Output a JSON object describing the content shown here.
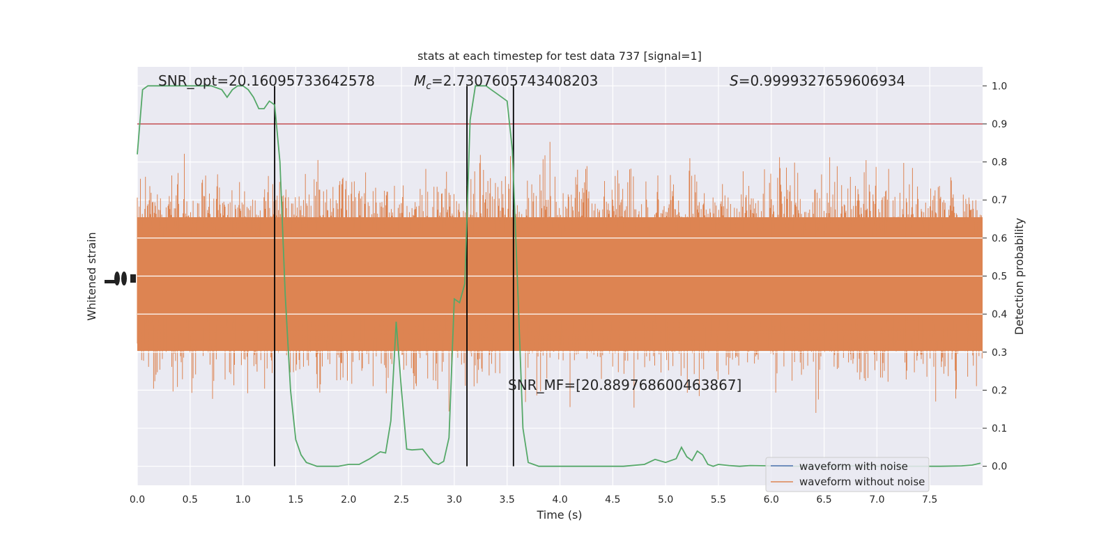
{
  "chart_data": {
    "type": "line",
    "title": "stats at each timestep for test data 737 [signal=1]",
    "xlabel": "Time (s)",
    "ylabel_left": "Whitened strain",
    "ylabel_right": "Detection probability",
    "xlim": [
      0.0,
      8.0
    ],
    "ylim_right": [
      -0.05,
      1.05
    ],
    "x_ticks": [
      "0.0",
      "0.5",
      "1.0",
      "1.5",
      "2.0",
      "2.5",
      "3.0",
      "3.5",
      "4.0",
      "4.5",
      "5.0",
      "5.5",
      "6.0",
      "6.5",
      "7.0",
      "7.5"
    ],
    "right_ticks": [
      "0.0",
      "0.1",
      "0.2",
      "0.3",
      "0.4",
      "0.5",
      "0.6",
      "0.7",
      "0.8",
      "0.9",
      "1.0"
    ],
    "grid": true,
    "legend_position": "bottom-right",
    "annotations": {
      "snr_opt": "SNR_opt=20.16095733642578",
      "mc_symbol": "M",
      "mc_subscript": "c",
      "mc_value": "=2.7307605743408203",
      "s_symbol": "S",
      "s_value": "=0.9999327659606934",
      "snr_mf": "SNR_MF=[20.889768600463867]"
    },
    "threshold": {
      "value": 0.9,
      "color": "#c44e52"
    },
    "vertical_lines_time": [
      1.3,
      3.12,
      3.56
    ],
    "series": [
      {
        "name": "waveform with noise",
        "color": "#4c72b0"
      },
      {
        "name": "waveform without noise",
        "color": "#dd8452"
      },
      {
        "color": "#55a868",
        "x": [
          0.0,
          0.05,
          0.1,
          0.15,
          0.2,
          0.3,
          0.4,
          0.5,
          0.6,
          0.7,
          0.8,
          0.85,
          0.9,
          0.95,
          1.0,
          1.05,
          1.1,
          1.15,
          1.2,
          1.25,
          1.3,
          1.35,
          1.4,
          1.45,
          1.5,
          1.55,
          1.6,
          1.7,
          1.8,
          1.9,
          2.0,
          2.1,
          2.2,
          2.3,
          2.35,
          2.4,
          2.45,
          2.5,
          2.55,
          2.6,
          2.7,
          2.8,
          2.85,
          2.9,
          2.95,
          3.0,
          3.05,
          3.1,
          3.15,
          3.2,
          3.25,
          3.3,
          3.35,
          3.4,
          3.45,
          3.5,
          3.55,
          3.6,
          3.65,
          3.7,
          3.75,
          3.8,
          3.9,
          4.0,
          4.2,
          4.4,
          4.6,
          4.8,
          4.9,
          5.0,
          5.1,
          5.15,
          5.2,
          5.25,
          5.3,
          5.35,
          5.4,
          5.45,
          5.5,
          5.6,
          5.7,
          5.8,
          6.0,
          6.2,
          6.4,
          6.6,
          6.8,
          7.0,
          7.2,
          7.4,
          7.6,
          7.8,
          7.9,
          7.98
        ],
        "values": [
          0.82,
          0.99,
          1.0,
          1.0,
          1.0,
          1.0,
          1.0,
          1.0,
          1.0,
          1.0,
          0.99,
          0.97,
          0.99,
          1.0,
          1.0,
          0.99,
          0.97,
          0.94,
          0.94,
          0.96,
          0.95,
          0.8,
          0.45,
          0.2,
          0.07,
          0.03,
          0.01,
          0.0,
          0.0,
          0.0,
          0.005,
          0.005,
          0.02,
          0.038,
          0.035,
          0.12,
          0.38,
          0.2,
          0.045,
          0.043,
          0.045,
          0.01,
          0.005,
          0.013,
          0.075,
          0.44,
          0.43,
          0.48,
          0.91,
          1.0,
          1.0,
          1.0,
          0.99,
          0.98,
          0.97,
          0.96,
          0.83,
          0.47,
          0.1,
          0.01,
          0.005,
          0.0,
          0.0,
          0.0,
          0.0,
          0.0,
          0.0,
          0.005,
          0.018,
          0.01,
          0.02,
          0.05,
          0.025,
          0.015,
          0.04,
          0.03,
          0.005,
          0.0,
          0.005,
          0.002,
          0.0,
          0.002,
          0.001,
          0.0,
          0.0,
          0.0,
          0.001,
          0.0,
          0.0,
          0.0,
          0.0,
          0.001,
          0.003,
          0.008
        ]
      }
    ]
  }
}
